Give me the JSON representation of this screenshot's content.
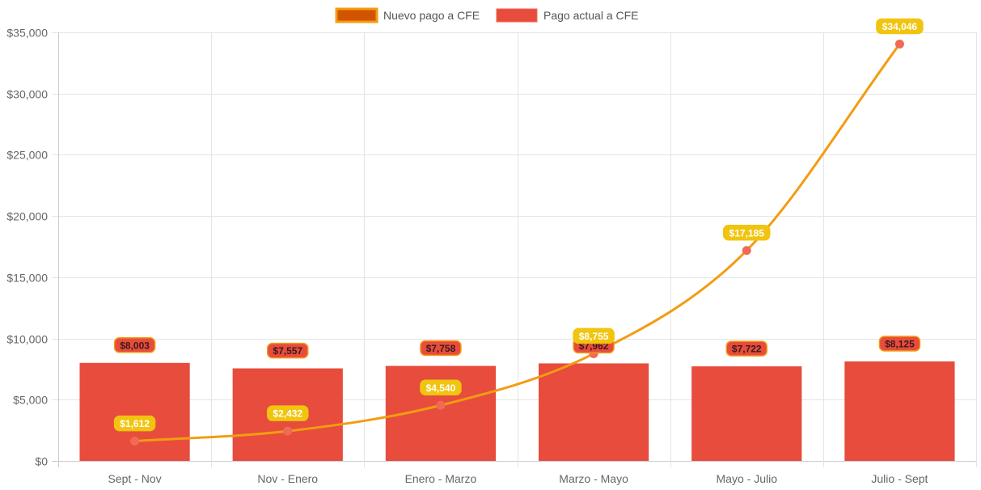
{
  "chart_data": {
    "type": "bar",
    "categories": [
      "Sept - Nov",
      "Nov - Enero",
      "Enero - Marzo",
      "Marzo - Mayo",
      "Mayo - Julio",
      "Julio - Sept"
    ],
    "ylim": [
      0,
      35000
    ],
    "y_ticks": [
      "$0",
      "$5,000",
      "$10,000",
      "$15,000",
      "$20,000",
      "$25,000",
      "$30,000",
      "$35,000"
    ],
    "y_tick_values": [
      0,
      5000,
      10000,
      15000,
      20000,
      25000,
      30000,
      35000
    ],
    "grid": true,
    "legend_position": "top-center",
    "series": [
      {
        "name": "Nuevo pago a CFE",
        "type": "line",
        "color": "#f39c12",
        "point_color": "#f06a55",
        "values": [
          1612,
          2432,
          4540,
          8755,
          17185,
          34046
        ],
        "labels": [
          "$1,612",
          "$2,432",
          "$4,540",
          "$8,755",
          "$17,185",
          "$34,046"
        ],
        "label_bg": "#f1c40f",
        "label_text_color": "#ffffff"
      },
      {
        "name": "Pago actual a CFE",
        "type": "bar",
        "color": "#e74c3c",
        "values": [
          8003,
          7557,
          7758,
          7962,
          7722,
          8125
        ],
        "labels": [
          "$8,003",
          "$7,557",
          "$7,758",
          "$7,962",
          "$7,722",
          "$8,125"
        ],
        "label_bg": "#e74c3c",
        "label_border": "#f39c12",
        "label_text_color": "#3b1a1a"
      }
    ],
    "legend": {
      "line_swatch_fill": "#d35400",
      "line_swatch_border": "#f39c12",
      "bar_swatch_fill": "#e74c3c",
      "bar_swatch_border": "#f06a55"
    }
  }
}
